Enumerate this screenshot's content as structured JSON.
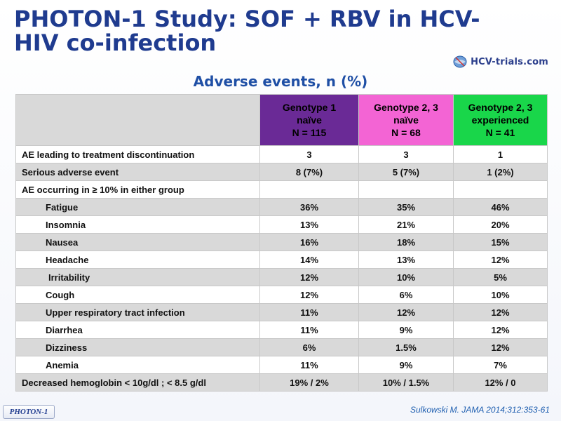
{
  "slide": {
    "title": "PHOTON-1 Study: SOF + RBV in HCV-HIV co-infection",
    "subtitle": "Adverse events, n (%)",
    "logo_text": "HCV-trials.com",
    "footer_tag": "PHOTON-1",
    "citation": "Sulkowski M. JAMA 2014;312:353-61"
  },
  "table": {
    "headers": [
      {
        "line1": "Genotype 1",
        "line2": "naïve",
        "line3": "N = 115",
        "color": "#6a2a96"
      },
      {
        "line1": "Genotype 2, 3",
        "line2": "naïve",
        "line3": "N = 68",
        "color": "#f364d4"
      },
      {
        "line1": "Genotype 2, 3",
        "line2": "experienced",
        "line3": "N = 41",
        "color": "#19d64a"
      }
    ],
    "rows": [
      {
        "label": "AE leading to treatment discontinuation",
        "values": [
          "3",
          "3",
          "1"
        ]
      },
      {
        "label": "Serious adverse event",
        "values": [
          "8 (7%)",
          "5 (7%)",
          "1 (2%)"
        ]
      },
      {
        "label": "AE occurring in ≥ 10% in either group",
        "values": [
          "",
          "",
          ""
        ]
      },
      {
        "label": "Fatigue",
        "values": [
          "36%",
          "35%",
          "46%"
        ]
      },
      {
        "label": "Insomnia",
        "values": [
          "13%",
          "21%",
          "20%"
        ]
      },
      {
        "label": "Nausea",
        "values": [
          "16%",
          "18%",
          "15%"
        ]
      },
      {
        "label": "Headache",
        "values": [
          "14%",
          "13%",
          "12%"
        ]
      },
      {
        "label": "Irritability",
        "values": [
          "12%",
          "10%",
          "5%"
        ]
      },
      {
        "label": "Cough",
        "values": [
          "12%",
          "6%",
          "10%"
        ]
      },
      {
        "label": "Upper respiratory tract infection",
        "values": [
          "11%",
          "12%",
          "12%"
        ]
      },
      {
        "label": "Diarrhea",
        "values": [
          "11%",
          "9%",
          "12%"
        ]
      },
      {
        "label": "Dizziness",
        "values": [
          "6%",
          "1.5%",
          "12%"
        ]
      },
      {
        "label": "Anemia",
        "values": [
          "11%",
          "9%",
          "7%"
        ]
      },
      {
        "label": "Decreased hemoglobin < 10g/dl ; < 8.5 g/dl",
        "values": [
          "19% / 2%",
          "10% / 1.5%",
          "12% / 0"
        ]
      }
    ]
  }
}
